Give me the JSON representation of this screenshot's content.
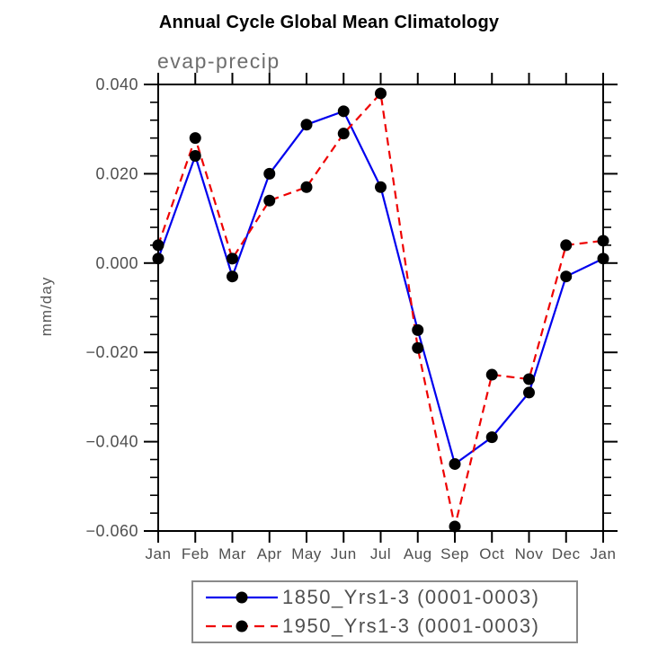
{
  "title": "Annual Cycle Global Mean Climatology",
  "chart_data": {
    "type": "line",
    "title": "Annual Cycle Global Mean Climatology",
    "subtitle": "evap-precip",
    "xlabel": "",
    "ylabel": "mm/day",
    "categories": [
      "Jan",
      "Feb",
      "Mar",
      "Apr",
      "May",
      "Jun",
      "Jul",
      "Aug",
      "Sep",
      "Oct",
      "Nov",
      "Dec",
      "Jan"
    ],
    "series": [
      {
        "name": "1850_Yrs1-3 (0001-0003)",
        "color": "#0000ee",
        "line_style": "solid",
        "marker": "filled-black-circle",
        "values": [
          0.001,
          0.024,
          -0.003,
          0.02,
          0.031,
          0.034,
          0.017,
          -0.015,
          -0.045,
          -0.039,
          -0.029,
          -0.003,
          0.001
        ]
      },
      {
        "name": "1950_Yrs1-3 (0001-0003)",
        "color": "#ee0000",
        "line_style": "dashed",
        "marker": "filled-black-circle",
        "values": [
          0.004,
          0.028,
          0.001,
          0.014,
          0.017,
          0.029,
          0.038,
          -0.019,
          -0.059,
          -0.025,
          -0.026,
          0.004,
          0.005
        ]
      }
    ],
    "ylim": [
      -0.06,
      0.04
    ],
    "y_major_ticks": [
      {
        "value": 0.04,
        "label": "0.040"
      },
      {
        "value": 0.02,
        "label": "0.020"
      },
      {
        "value": 0.0,
        "label": "0.000"
      },
      {
        "value": -0.02,
        "label": "−0.020"
      },
      {
        "value": -0.04,
        "label": "−0.040"
      },
      {
        "value": -0.06,
        "label": "−0.060"
      }
    ],
    "y_minor_step": 0.004,
    "grid": false,
    "legend_position": "bottom-center",
    "axis_color": "#000000",
    "marker_color": "#000000",
    "label_color": "#4f4f4f"
  }
}
